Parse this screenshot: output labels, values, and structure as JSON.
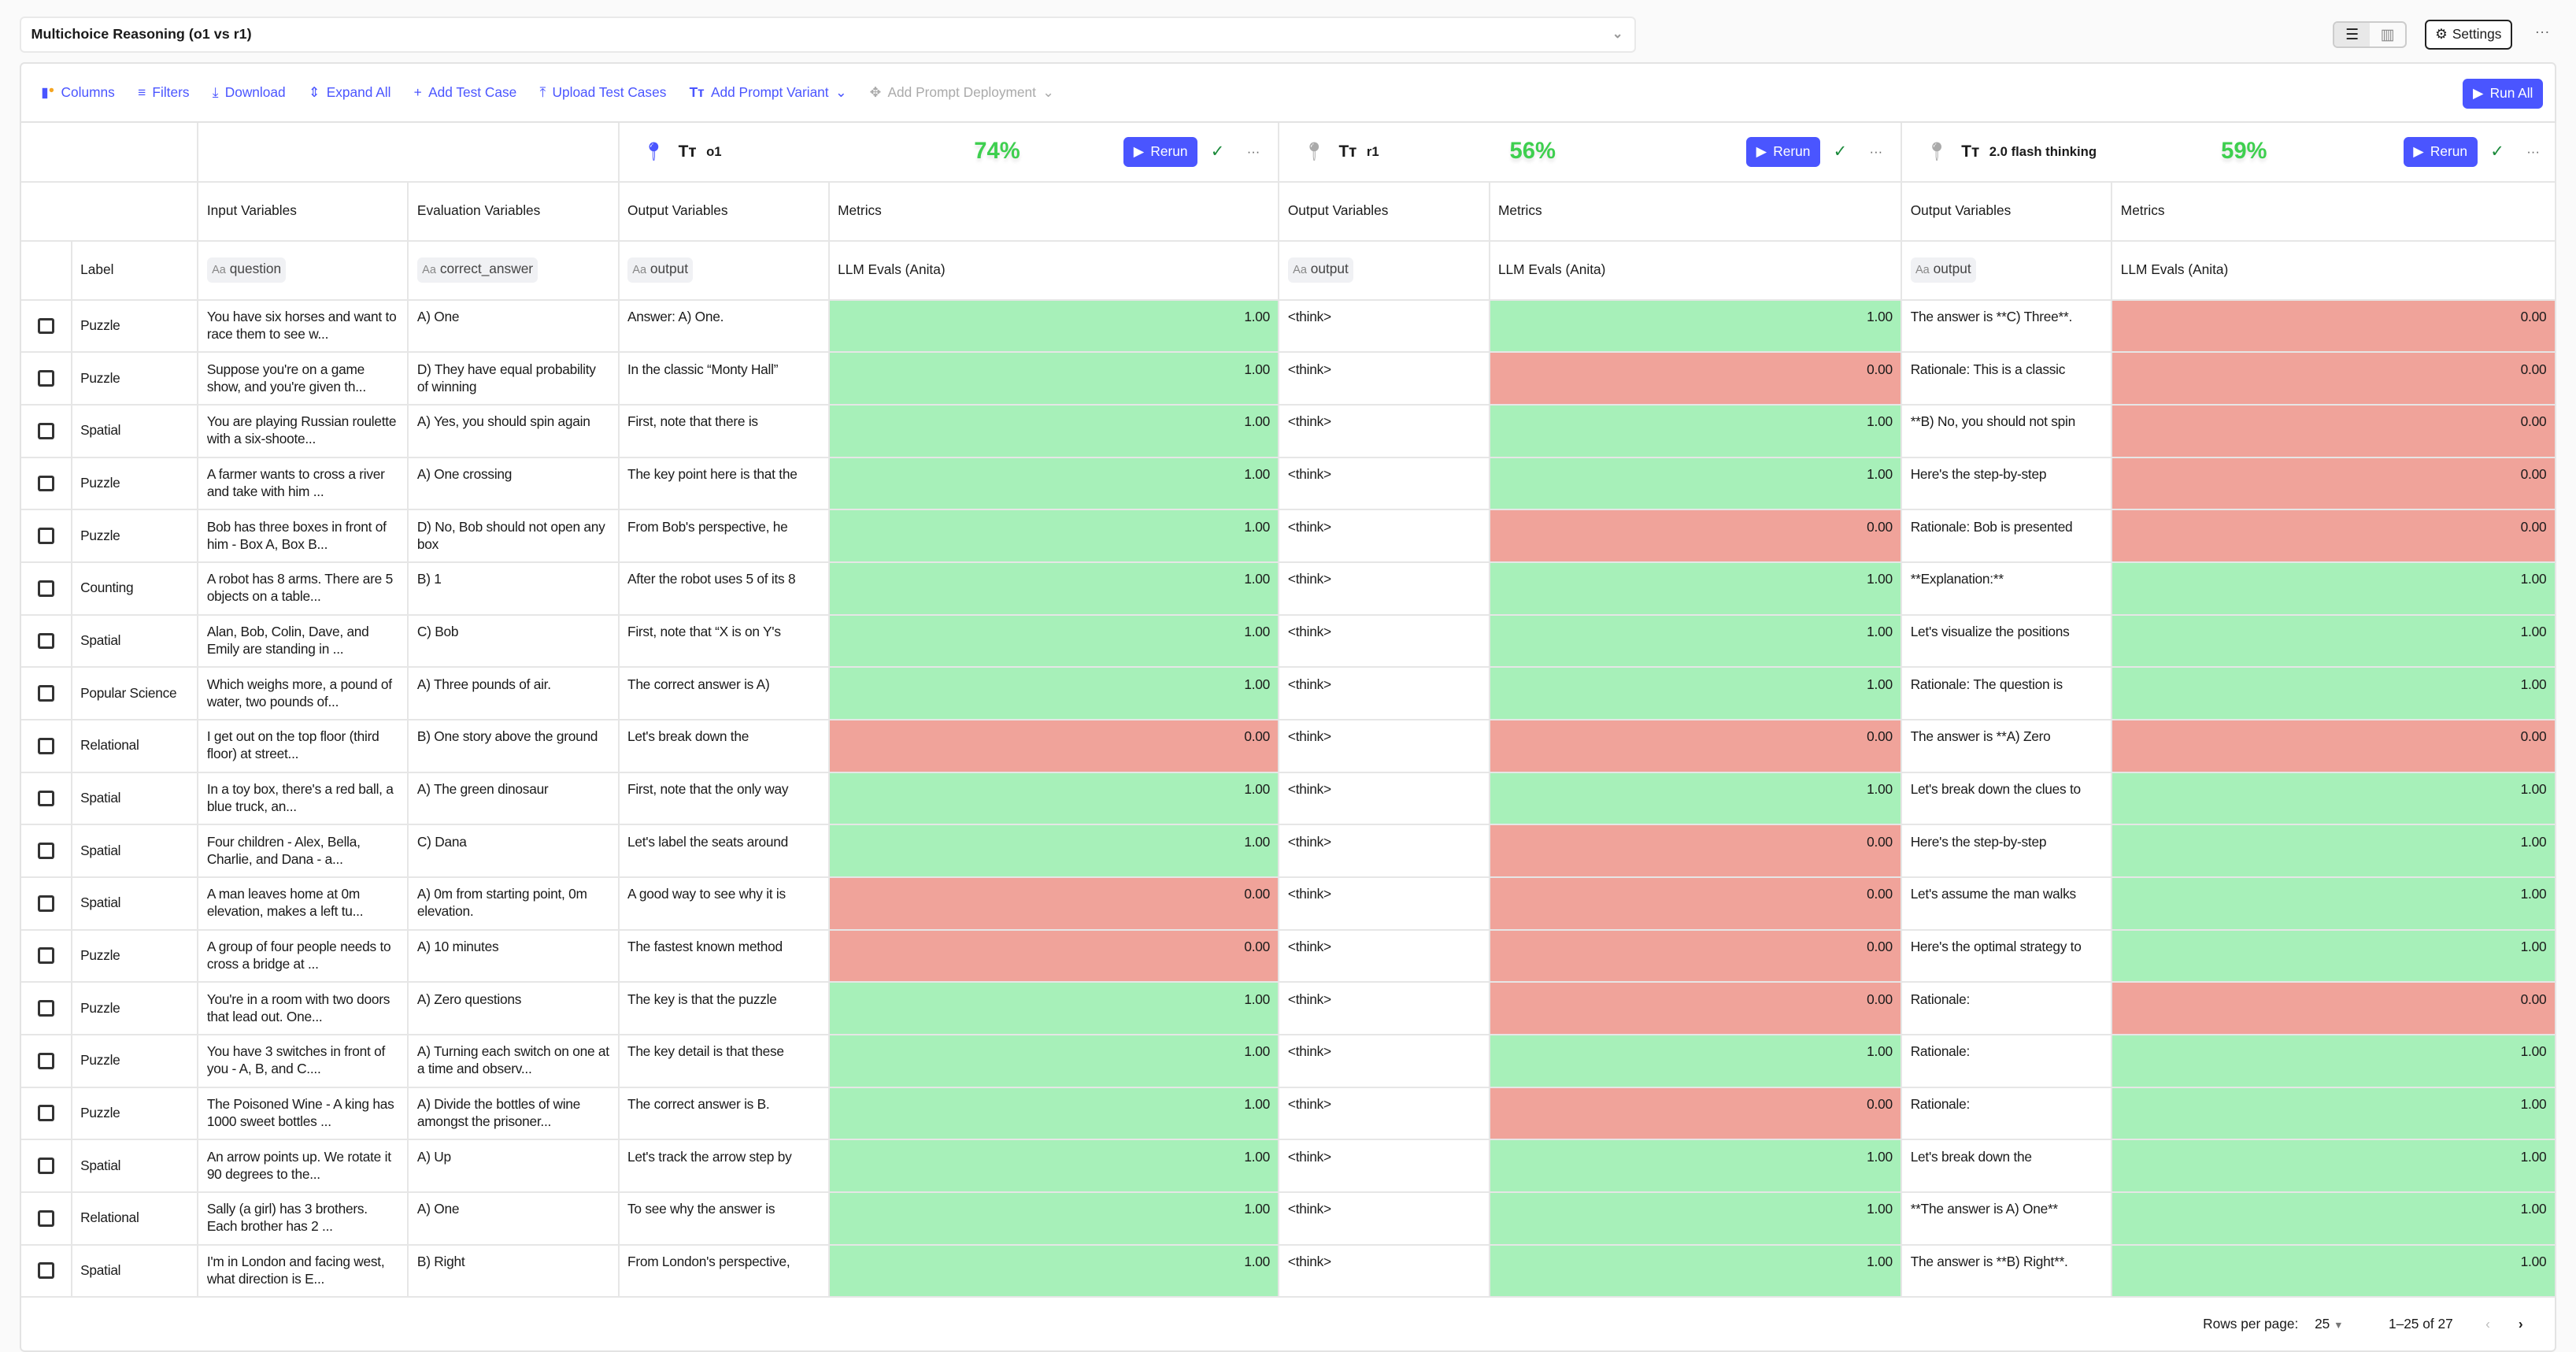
{
  "header": {
    "title": "Multichoice Reasoning (o1 vs r1)",
    "settings_label": "Settings",
    "view_modes": [
      "list-view-icon",
      "table-view-icon"
    ]
  },
  "toolbar": {
    "columns": "Columns",
    "filters": "Filters",
    "download": "Download",
    "expand_all": "Expand All",
    "add_test_case": "Add Test Case",
    "upload_test_cases": "Upload Test Cases",
    "add_prompt_variant": "Add Prompt Variant",
    "add_prompt_deployment": "Add Prompt Deployment",
    "run_all": "Run All"
  },
  "colors": {
    "accent": "#4a55ff",
    "pass": "#a7f0b9",
    "fail": "#f0a39a",
    "score": "#3ecf4f"
  },
  "columns": {
    "input": "Input Variables",
    "evaluation": "Evaluation Variables",
    "output": "Output Variables",
    "metrics": "Metrics",
    "label": "Label",
    "question_var": "question",
    "answer_var": "correct_answer",
    "output_var": "output",
    "metric_name": "LLM Evals (Anita)",
    "var_prefix": "Aa"
  },
  "variants": [
    {
      "name": "o1",
      "score": "74%",
      "rerun": "Rerun",
      "pinned": true
    },
    {
      "name": "r1",
      "score": "56%",
      "rerun": "Rerun",
      "pinned": false
    },
    {
      "name": "2.0 flash thinking",
      "score": "59%",
      "rerun": "Rerun",
      "pinned": false
    }
  ],
  "rows": [
    {
      "label": "Puzzle",
      "question": "You have six horses and want to race them to see w...",
      "answer": "A) One",
      "outputs": [
        "Answer: A) One.",
        "<think>",
        "The answer is **C) Three**."
      ],
      "scores": [
        "1.00",
        "1.00",
        "0.00"
      ]
    },
    {
      "label": "Puzzle",
      "question": "Suppose you're on a game show, and you're given th...",
      "answer": "D) They have equal probability of winning",
      "outputs": [
        "In the classic “Monty Hall”",
        "<think>",
        "Rationale: This is a classic"
      ],
      "scores": [
        "1.00",
        "0.00",
        "0.00"
      ]
    },
    {
      "label": "Spatial",
      "question": "You are playing Russian roulette with a six-shoote...",
      "answer": "A) Yes, you should spin again",
      "outputs": [
        "First, note that there is",
        "<think>",
        "**B) No, you should not spin"
      ],
      "scores": [
        "1.00",
        "1.00",
        "0.00"
      ]
    },
    {
      "label": "Puzzle",
      "question": "A farmer wants to cross a river and take with him ...",
      "answer": "A) One crossing",
      "outputs": [
        "The key point here is that the",
        "<think>",
        "Here's the step-by-step"
      ],
      "scores": [
        "1.00",
        "1.00",
        "0.00"
      ]
    },
    {
      "label": "Puzzle",
      "question": "Bob has three boxes in front of him - Box A, Box B...",
      "answer": "D) No, Bob should not open any box",
      "outputs": [
        "From Bob's perspective, he",
        "<think>",
        "Rationale: Bob is presented"
      ],
      "scores": [
        "1.00",
        "0.00",
        "0.00"
      ]
    },
    {
      "label": "Counting",
      "question": "A robot has 8 arms. There are 5 objects on a table...",
      "answer": "B) 1",
      "outputs": [
        "After the robot uses 5 of its 8",
        "<think>",
        "**Explanation:**"
      ],
      "scores": [
        "1.00",
        "1.00",
        "1.00"
      ]
    },
    {
      "label": "Spatial",
      "question": "Alan, Bob, Colin, Dave, and Emily are standing in ...",
      "answer": "C) Bob",
      "outputs": [
        "First, note that “X is on Y's",
        "<think>",
        "Let's visualize the positions"
      ],
      "scores": [
        "1.00",
        "1.00",
        "1.00"
      ]
    },
    {
      "label": "Popular Science",
      "question": "Which weighs more, a pound of water, two pounds of...",
      "answer": "A) Three pounds of air.",
      "outputs": [
        "The correct answer is A)",
        "<think>",
        "Rationale: The question is"
      ],
      "scores": [
        "1.00",
        "1.00",
        "1.00"
      ]
    },
    {
      "label": "Relational",
      "question": "I get out on the top floor (third floor) at street...",
      "answer": "B) One story above the ground",
      "outputs": [
        "Let's break down the",
        "<think>",
        "The answer is **A) Zero"
      ],
      "scores": [
        "0.00",
        "0.00",
        "0.00"
      ]
    },
    {
      "label": "Spatial",
      "question": "In a toy box, there's a red ball, a blue truck, an...",
      "answer": "A) The green dinosaur",
      "outputs": [
        "First, note that the only way",
        "<think>",
        "Let's break down the clues to"
      ],
      "scores": [
        "1.00",
        "1.00",
        "1.00"
      ]
    },
    {
      "label": "Spatial",
      "question": "Four children - Alex, Bella, Charlie, and Dana - a...",
      "answer": "C) Dana",
      "outputs": [
        "Let's label the seats around",
        "<think>",
        "Here's the step-by-step"
      ],
      "scores": [
        "1.00",
        "0.00",
        "1.00"
      ]
    },
    {
      "label": "Spatial",
      "question": "A man leaves home at 0m elevation, makes a left tu...",
      "answer": "A) 0m from starting point, 0m elevation.",
      "outputs": [
        "A good way to see why it is",
        "<think>",
        "Let's assume the man walks"
      ],
      "scores": [
        "0.00",
        "0.00",
        "1.00"
      ]
    },
    {
      "label": "Puzzle",
      "question": "A group of four people needs to cross a bridge at ...",
      "answer": "A) 10 minutes",
      "outputs": [
        "The fastest known method",
        "<think>",
        "Here's the optimal strategy to"
      ],
      "scores": [
        "0.00",
        "0.00",
        "1.00"
      ]
    },
    {
      "label": "Puzzle",
      "question": "You're in a room with two doors that lead out. One...",
      "answer": "A) Zero questions",
      "outputs": [
        "The key is that the puzzle",
        "<think>",
        "Rationale:"
      ],
      "scores": [
        "1.00",
        "0.00",
        "0.00"
      ]
    },
    {
      "label": "Puzzle",
      "question": "You have 3 switches in front of you - A, B, and C....",
      "answer": "A) Turning each switch on one at a time and observ...",
      "outputs": [
        "The key detail is that these",
        "<think>",
        "Rationale:"
      ],
      "scores": [
        "1.00",
        "1.00",
        "1.00"
      ]
    },
    {
      "label": "Puzzle",
      "question": "The Poisoned Wine - A king has 1000 sweet bottles ...",
      "answer": "A) Divide the bottles of wine amongst the prisoner...",
      "outputs": [
        "The correct answer is B.",
        "<think>",
        "Rationale:"
      ],
      "scores": [
        "1.00",
        "0.00",
        "1.00"
      ]
    },
    {
      "label": "Spatial",
      "question": "An arrow points up. We rotate it 90 degrees to the...",
      "answer": "A) Up",
      "outputs": [
        "Let's track the arrow step by",
        "<think>",
        "Let's break down the"
      ],
      "scores": [
        "1.00",
        "1.00",
        "1.00"
      ]
    },
    {
      "label": "Relational",
      "question": "Sally (a girl) has 3 brothers. Each brother has 2 ...",
      "answer": "A) One",
      "outputs": [
        "To see why the answer is",
        "<think>",
        "**The answer is A) One**"
      ],
      "scores": [
        "1.00",
        "1.00",
        "1.00"
      ]
    },
    {
      "label": "Spatial",
      "question": "I'm in London and facing west, what direction is E...",
      "answer": "B) Right",
      "outputs": [
        "From London's perspective,",
        "<think>",
        "The answer is **B) Right**."
      ],
      "scores": [
        "1.00",
        "1.00",
        "1.00"
      ]
    }
  ],
  "pagination": {
    "rows_per_page_label": "Rows per page:",
    "rows_per_page": "25",
    "range": "1–25 of 27"
  }
}
